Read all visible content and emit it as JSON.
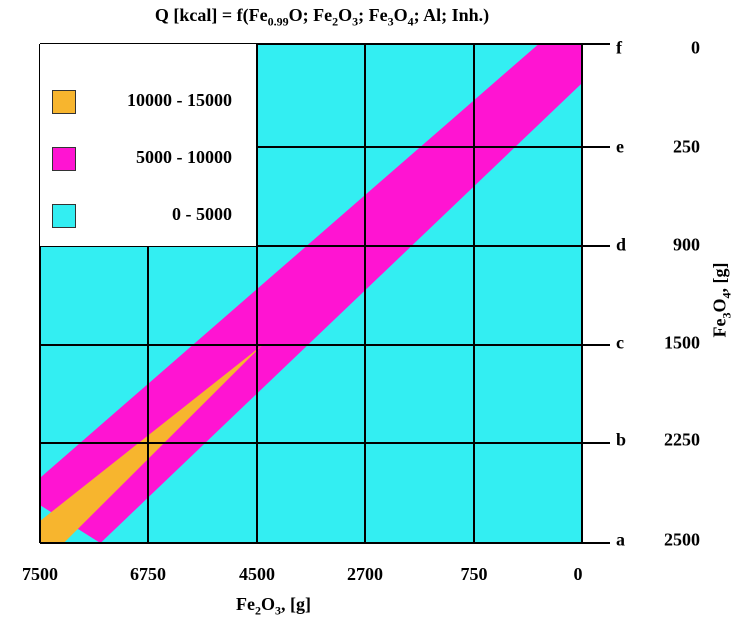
{
  "chart_data": {
    "type": "heatmap",
    "title_parts": {
      "pre": "Q [kcal] = f(Fe",
      "s1": "0.99",
      "m1": "O;  Fe",
      "s2": "2",
      "m2": "O",
      "s3": "3",
      "m3": ";  Fe",
      "s4": "3",
      "m4": "O",
      "s5": "4",
      "post": ";  Al; Inh.)"
    },
    "xlabel_parts": {
      "pre": "Fe",
      "s1": "2",
      "mid": "O",
      "s2": "3",
      "post": ", [g]"
    },
    "ylabel_parts": {
      "pre": "Fe",
      "s1": "3",
      "mid": "O",
      "s2": "4",
      "post": ", [g]"
    },
    "x_ticks": [
      "7500",
      "6750",
      "4500",
      "2700",
      "750",
      "0"
    ],
    "y_ticks": [
      {
        "letter": "a",
        "value": "2500"
      },
      {
        "letter": "b",
        "value": "2250"
      },
      {
        "letter": "c",
        "value": "1500"
      },
      {
        "letter": "d",
        "value": "900"
      },
      {
        "letter": "e",
        "value": "250"
      },
      {
        "letter": "f",
        "value": "0"
      }
    ],
    "grid": true,
    "legend_position": "top-left",
    "legend": [
      {
        "label": "10000 - 15000",
        "color": "#f7b52e"
      },
      {
        "label": "5000 - 10000",
        "color": "#ff14d2"
      },
      {
        "label": "0 - 5000",
        "color": "#33eef2"
      }
    ],
    "regions": [
      {
        "range": "0 - 5000",
        "color": "#33eef2",
        "polygon": [
          [
            0,
            0
          ],
          [
            5,
            0
          ],
          [
            5,
            5
          ],
          [
            0,
            5
          ]
        ]
      },
      {
        "range": "5000 - 10000",
        "color": "#ff14d2",
        "polygon": [
          [
            0,
            0.38
          ],
          [
            0.56,
            0
          ],
          [
            5,
            5
          ],
          [
            4.6,
            5
          ],
          [
            0,
            0.65
          ],
          [
            0,
            0.38
          ]
        ]
      },
      {
        "range": "5000 - 10000",
        "color": "#ff14d2",
        "polygon": [
          [
            0,
            0.38
          ],
          [
            0,
            0.65
          ],
          [
            4.6,
            5
          ],
          [
            5,
            5
          ],
          [
            5,
            4.62
          ],
          [
            0.56,
            0
          ]
        ]
      },
      {
        "range": "10000 - 15000",
        "color": "#f7b52e",
        "polygon": [
          [
            0,
            0
          ],
          [
            0.22,
            0
          ],
          [
            2.05,
            2.0
          ],
          [
            0,
            0.22
          ]
        ]
      }
    ]
  }
}
